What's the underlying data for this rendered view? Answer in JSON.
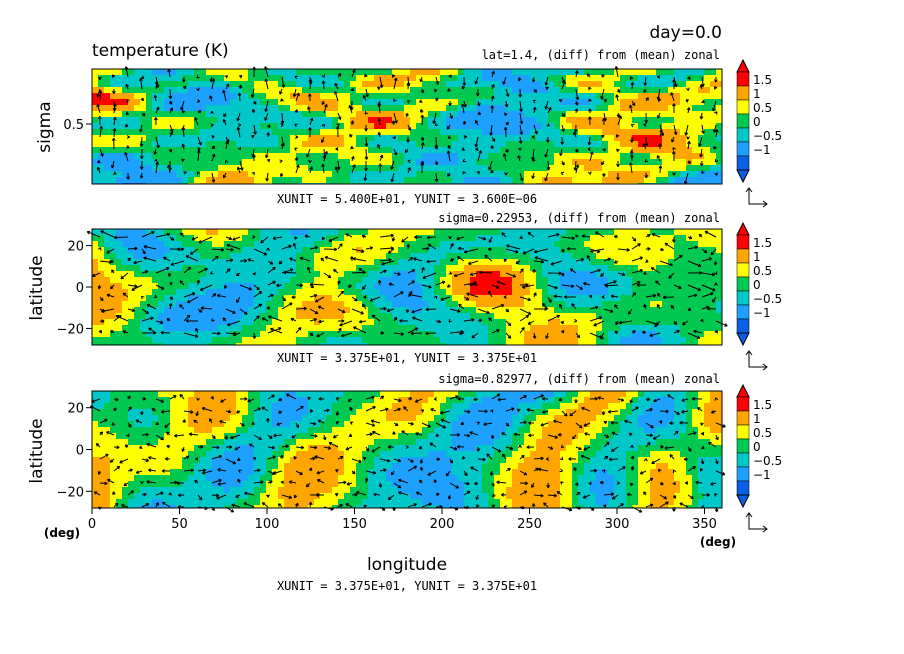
{
  "header": {
    "day_label": "day=0.0",
    "title": "temperature (K)"
  },
  "colors": {
    "levels": [
      "#0a5fe6",
      "#1ea0ff",
      "#00c8c8",
      "#00c850",
      "#ffff00",
      "#ffa500",
      "#ff0000"
    ],
    "axis": "#000000",
    "vector": "#000000"
  },
  "chart_data": [
    {
      "type": "heatmap",
      "panel": "vertical-section",
      "subtitle": "lat=1.4, (diff) from (mean) zonal",
      "ylabel": "sigma",
      "yticks": [
        "0.5"
      ],
      "y_range": [
        0,
        1
      ],
      "x_range": [
        0,
        360
      ],
      "colorbar_ticks": [
        "1.5",
        "1",
        "0.5",
        "0",
        "−0.5",
        "−1"
      ],
      "unit_note": "XUNIT = 5.400E+01, YUNIT = 3.600E−06",
      "has_vectors": true
    },
    {
      "type": "heatmap",
      "panel": "horizontal-section-upper",
      "subtitle": "sigma=0.22953, (diff) from (mean) zonal",
      "ylabel": "latitude",
      "yticks": [
        "20",
        "0",
        "−20"
      ],
      "y_range": [
        -28,
        28
      ],
      "x_range": [
        0,
        360
      ],
      "colorbar_ticks": [
        "1.5",
        "1",
        "0.5",
        "0",
        "−0.5",
        "−1"
      ],
      "unit_note": "XUNIT = 3.375E+01, YUNIT = 3.375E+01",
      "has_vectors": true
    },
    {
      "type": "heatmap",
      "panel": "horizontal-section-lower",
      "subtitle": "sigma=0.82977, (diff) from (mean) zonal",
      "ylabel": "latitude",
      "yticks": [
        "20",
        "0",
        "−20"
      ],
      "y_range": [
        -28,
        28
      ],
      "x_range": [
        0,
        360
      ],
      "xticks": [
        "0",
        "50",
        "100",
        "150",
        "200",
        "250",
        "300",
        "350"
      ],
      "xlabel": "longitude",
      "x_unit": "(deg)",
      "y_unit": "(deg)",
      "colorbar_ticks": [
        "1.5",
        "1",
        "0.5",
        "0",
        "−0.5",
        "−1"
      ],
      "unit_note": "XUNIT = 3.375E+01, YUNIT = 3.375E+01",
      "has_vectors": true
    }
  ]
}
